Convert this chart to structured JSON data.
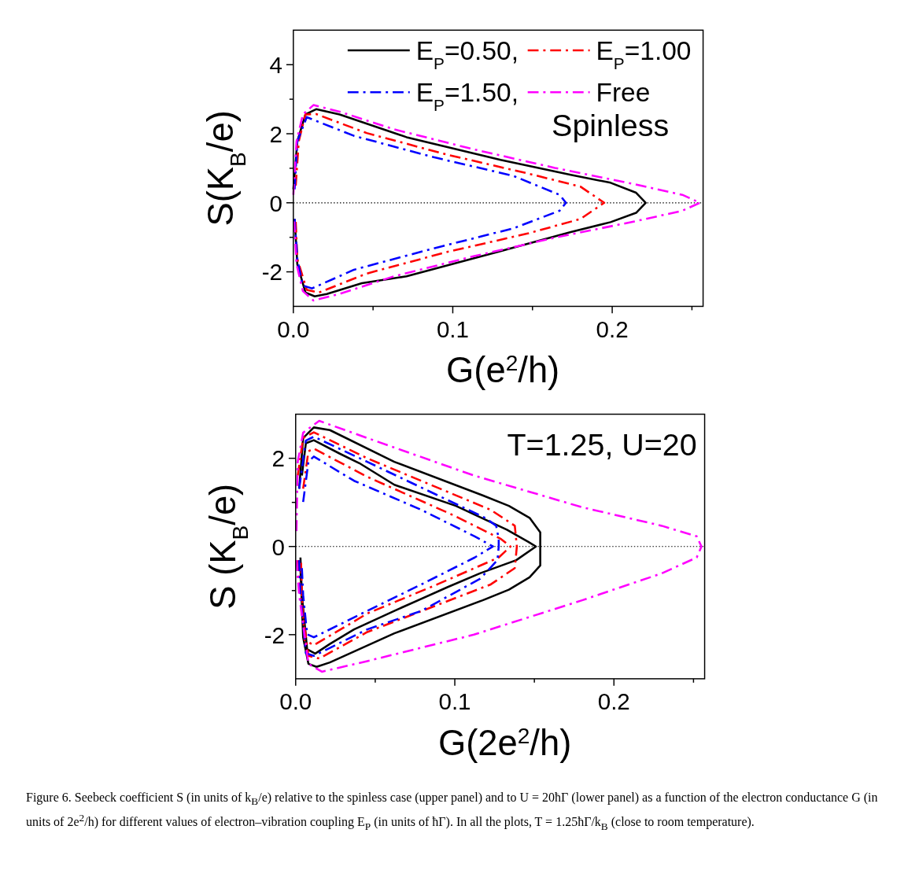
{
  "chart_data": [
    {
      "type": "line",
      "xlabel": "G(e$^{2}$/h)",
      "ylabel": "S(K$_{B}$/e)",
      "xlim": [
        0,
        0.257
      ],
      "ylim": [
        -3,
        5
      ],
      "xticks": [
        {
          "value": 0,
          "label": "0.0"
        },
        {
          "value": 0.05,
          "label": null
        },
        {
          "value": 0.1,
          "label": "0.1"
        },
        {
          "value": 0.15,
          "label": null
        },
        {
          "value": 0.2,
          "label": "0.2"
        },
        {
          "value": 0.25,
          "label": null
        }
      ],
      "yticks": [
        -2,
        {
          "value": -1,
          "label": null
        },
        0,
        {
          "value": 1,
          "label": null
        },
        2,
        {
          "value": 3,
          "label": null
        },
        4
      ],
      "grid": false,
      "legend": "top right",
      "ref_lines": [
        {
          "axis": "y",
          "value": 0,
          "color": "#000000",
          "line_style": "dotted"
        }
      ],
      "annotations": [
        "Spinless"
      ],
      "series": [
        {
          "name": "E$_{P}$=0.50,",
          "color": "#000000",
          "line_style": "solid",
          "x": [
            0,
            0.0025,
            0.0076,
            0.0143,
            0.029,
            0.071,
            0.13,
            0.174,
            0.199,
            0.215,
            0.221,
            0.215,
            0.199,
            0.174,
            0.13,
            0.071,
            0.043,
            0.021,
            0.0134,
            0.0076,
            0.0025,
            0.0008
          ],
          "values": [
            0.39,
            1.78,
            2.56,
            2.71,
            2.56,
            1.9,
            1.24,
            0.81,
            0.58,
            0.29,
            0,
            -0.29,
            -0.56,
            -0.85,
            -1.4,
            -2.13,
            -2.33,
            -2.64,
            -2.71,
            -2.6,
            -1.78,
            -0.47
          ]
        },
        {
          "name": "E$_{P}$=1.00",
          "color": "#ff0000",
          "line_style": "dashed",
          "x": [
            0.0015,
            0.0034,
            0.0076,
            0.0143,
            0.046,
            0.096,
            0.147,
            0.18,
            0.195,
            0.18,
            0.147,
            0.096,
            0.046,
            0.016,
            0.0084,
            0.0025,
            0.0015
          ],
          "values": [
            0.5,
            1.78,
            2.56,
            2.57,
            2.02,
            1.4,
            0.85,
            0.47,
            0,
            -0.47,
            -0.89,
            -1.43,
            -2.05,
            -2.6,
            -2.52,
            -1.63,
            -0.55
          ]
        },
        {
          "name": "E$_{P}$=1.50,",
          "color": "#0000ff",
          "line_style": "dashed",
          "x": [
            0.0008,
            0.0025,
            0.0084,
            0.038,
            0.088,
            0.138,
            0.167,
            0.171,
            0.167,
            0.138,
            0.088,
            0.038,
            0.0117,
            0.0059,
            0.0025,
            0.0008
          ],
          "values": [
            0.39,
            1.78,
            2.48,
            1.94,
            1.32,
            0.78,
            0.23,
            0,
            -0.23,
            -0.74,
            -1.32,
            -1.94,
            -2.48,
            -2.4,
            -1.63,
            -0.47
          ]
        },
        {
          "name": "Free",
          "color": "#ff00ff",
          "line_style": "dashed",
          "x": [
            0,
            0.002,
            0.006,
            0.0126,
            0.029,
            0.063,
            0.113,
            0.164,
            0.214,
            0.244,
            0.255,
            0.244,
            0.214,
            0.164,
            0.113,
            0.063,
            0.029,
            0.0126,
            0.006,
            0.002,
            0.0005
          ],
          "values": [
            0.23,
            1.78,
            2.56,
            2.83,
            2.64,
            2.13,
            1.55,
            1.01,
            0.54,
            0.23,
            0,
            -0.23,
            -0.54,
            -1.01,
            -1.55,
            -2.13,
            -2.64,
            -2.83,
            -2.56,
            -1.78,
            -0.54
          ]
        }
      ]
    },
    {
      "type": "line",
      "xlabel": "G(2e$^{2}$/h)",
      "ylabel": "S (K$_{B}$/e)",
      "xlim": [
        0,
        0.257
      ],
      "ylim": [
        -3,
        3
      ],
      "xticks": [
        {
          "value": 0,
          "label": "0.0"
        },
        {
          "value": 0.05,
          "label": null
        },
        {
          "value": 0.1,
          "label": "0.1"
        },
        {
          "value": 0.15,
          "label": null
        },
        {
          "value": 0.2,
          "label": "0.2"
        },
        {
          "value": 0.25,
          "label": null
        }
      ],
      "yticks": [
        -2,
        {
          "value": -1,
          "label": null
        },
        0,
        {
          "value": 1,
          "label": null
        },
        2
      ],
      "grid": false,
      "legend": false,
      "ref_lines": [
        {
          "axis": "y",
          "value": 0,
          "color": "#000000",
          "line_style": "dotted"
        }
      ],
      "annotations": [
        "T=1.25, U=20",
        "Figure 6. Seebeck coefficient S (in units of k$_{B}$/e) relative to the spinless case (upper panel) and to U = 20ħΓ (lower panel) as a function of the electron conductance G (in units of 2e$^{2}$/h) for different values of electron–vibration coupling E$_{P}$ (in units of ħΓ). In all the plots, T = 1.25ħΓ/k$_{B}$ (close to room temperature)."
      ],
      "series": [
        {
          "color": "#000000",
          "line_style": "solid",
          "x": [
            0.0022,
            0.0047,
            0.0114,
            0.0215,
            0.062,
            0.1175,
            0.134,
            0.147,
            0.1537,
            0.1537,
            0.1537,
            0.147,
            0.134,
            0.1175,
            0.062,
            0.0215,
            0.0131,
            0.008,
            0.0047,
            0.003
          ],
          "values": [
            1.31,
            2.46,
            2.7,
            2.64,
            1.92,
            1.16,
            0.92,
            0.65,
            0.32,
            0,
            -0.43,
            -0.7,
            -0.98,
            -1.22,
            -1.97,
            -2.63,
            -2.73,
            -2.66,
            -2.06,
            -0.49
          ]
        },
        {
          "color": "#000000",
          "line_style": "solid",
          "x": [
            0.0039,
            0.0064,
            0.0114,
            0.028,
            0.04,
            0.062,
            0.1007,
            0.1327,
            0.146,
            0.151,
            0.1386,
            0.1158,
            0.0956,
            0.062,
            0.0367,
            0.0215,
            0.0123,
            0.0072,
            0.0039,
            0.003
          ],
          "values": [
            1.61,
            2.34,
            2.41,
            2.1,
            1.89,
            1.4,
            0.92,
            0.38,
            0.11,
            0,
            -0.31,
            -0.61,
            -0.92,
            -1.46,
            -1.88,
            -2.21,
            -2.43,
            -2.33,
            -1.1,
            -0.25
          ]
        },
        {
          "color": "#ff0000",
          "line_style": "dashed",
          "x": [
            0.0013,
            0.0047,
            0.0114,
            0.045,
            0.1226,
            0.1377,
            0.139,
            0.1377,
            0.1226,
            0.045,
            0.0148,
            0.008,
            0.003,
            0.0017
          ],
          "values": [
            1.61,
            2.46,
            2.59,
            2.0,
            0.83,
            0.47,
            0,
            -0.49,
            -0.86,
            -1.94,
            -2.54,
            -2.48,
            -1.1,
            -0.31
          ]
        },
        {
          "color": "#ff0000",
          "line_style": "dashed",
          "x": [
            0.0047,
            0.008,
            0.0114,
            0.045,
            0.099,
            0.129,
            0.135,
            0.1276,
            0.089,
            0.045,
            0.0114,
            0.0056,
            0.0039,
            0.0034
          ],
          "values": [
            1.31,
            2.16,
            2.22,
            1.58,
            0.71,
            0.17,
            0,
            -0.25,
            -0.86,
            -1.52,
            -2.24,
            -2.12,
            -1.1,
            -0.37
          ]
        },
        {
          "color": "#0000ff",
          "line_style": "dashed",
          "x": [
            0.0022,
            0.0064,
            0.0114,
            0.045,
            0.119,
            0.126,
            0.1276,
            0.1276,
            0.1268,
            0.116,
            0.079,
            0.045,
            0.0114,
            0.0064,
            0.003,
            0.0022
          ],
          "values": [
            1.31,
            2.4,
            2.49,
            1.92,
            0.65,
            0.47,
            0.17,
            0,
            -0.31,
            -0.73,
            -1.46,
            -1.88,
            -2.48,
            -2.42,
            -1.1,
            -0.31
          ]
        },
        {
          "color": "#0000ff",
          "line_style": "dashed",
          "x": [
            0.0047,
            0.008,
            0.0114,
            0.0367,
            0.079,
            0.1125,
            0.124,
            0.1125,
            0.079,
            0.045,
            0.0114,
            0.0072,
            0.0047,
            0.0039
          ],
          "values": [
            1.01,
            1.92,
            2.04,
            1.49,
            0.83,
            0.23,
            0,
            -0.25,
            -0.86,
            -1.46,
            -2.06,
            -1.99,
            -1.1,
            -0.49
          ]
        },
        {
          "color": "#ff00ff",
          "line_style": "dashed",
          "x": [
            0.0005,
            0.0013,
            0.0047,
            0.0148,
            0.045,
            0.112,
            0.18,
            0.23,
            0.252,
            0.255,
            0.252,
            0.23,
            0.18,
            0.112,
            0.045,
            0.0165,
            0.008,
            0.0022,
            0.0005
          ],
          "values": [
            0.35,
            1.92,
            2.58,
            2.85,
            2.46,
            1.61,
            0.89,
            0.47,
            0.23,
            0,
            -0.25,
            -0.61,
            -1.22,
            -2.0,
            -2.6,
            -2.84,
            -2.66,
            -1.1,
            -0.31
          ]
        }
      ]
    }
  ]
}
